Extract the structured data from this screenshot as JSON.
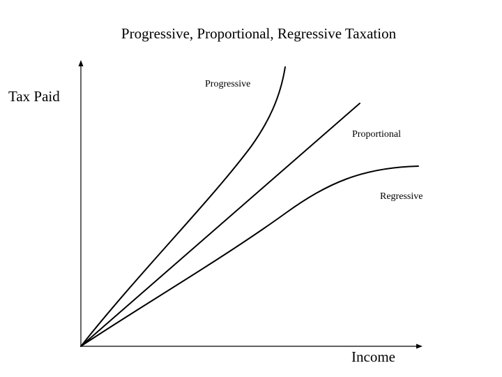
{
  "title": "Progressive, Proportional, Regressive Taxation",
  "axes": {
    "x_label": "Income",
    "y_label": "Tax Paid"
  },
  "curves": [
    {
      "id": "progressive",
      "label": "Progressive"
    },
    {
      "id": "proportional",
      "label": "Proportional"
    },
    {
      "id": "regressive",
      "label": "Regressive"
    }
  ],
  "colors": {
    "ink": "#000000",
    "background": "#ffffff"
  }
}
